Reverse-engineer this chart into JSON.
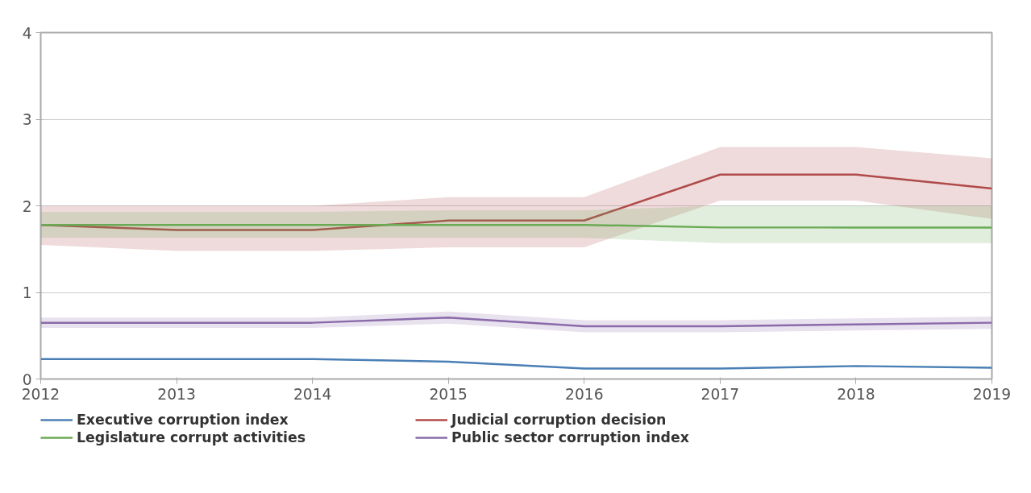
{
  "chart_data": {
    "type": "line",
    "x": [
      2012,
      2013,
      2014,
      2015,
      2016,
      2017,
      2018,
      2019
    ],
    "xlim": [
      2012,
      2019
    ],
    "xticks": [
      2012,
      2013,
      2014,
      2015,
      2016,
      2017,
      2018,
      2019
    ],
    "ylim": [
      0,
      4
    ],
    "yticks": [
      0,
      1,
      2,
      3,
      4
    ],
    "grid": "y",
    "legend": "bottom",
    "line_style": "solid",
    "marker": "none",
    "series": [
      {
        "name": "Executive corruption index",
        "color": "#4a7fb5",
        "values": [
          0.23,
          0.23,
          0.23,
          0.2,
          0.12,
          0.12,
          0.15,
          0.13
        ]
      },
      {
        "name": "Judicial corruption decision",
        "color": "#b04a4a",
        "values": [
          1.78,
          1.72,
          1.72,
          1.83,
          1.83,
          2.36,
          2.36,
          2.2
        ],
        "lower": [
          1.55,
          1.48,
          1.48,
          1.52,
          1.52,
          2.06,
          2.06,
          1.85
        ],
        "upper": [
          2.0,
          2.0,
          2.0,
          2.1,
          2.1,
          2.68,
          2.68,
          2.55
        ]
      },
      {
        "name": "Legislature corrupt activities",
        "color": "#6aaa55",
        "values": [
          1.78,
          1.78,
          1.78,
          1.78,
          1.78,
          1.75,
          1.75,
          1.75
        ],
        "lower": [
          1.63,
          1.63,
          1.63,
          1.63,
          1.63,
          1.57,
          1.57,
          1.57
        ],
        "upper": [
          1.93,
          1.93,
          1.93,
          1.95,
          1.95,
          2.0,
          2.0,
          2.0
        ]
      },
      {
        "name": "Public sector corruption index",
        "color": "#8a6aaa",
        "values": [
          0.65,
          0.65,
          0.65,
          0.71,
          0.61,
          0.61,
          0.63,
          0.65
        ],
        "lower": [
          0.59,
          0.59,
          0.59,
          0.64,
          0.54,
          0.54,
          0.56,
          0.58
        ],
        "upper": [
          0.71,
          0.71,
          0.71,
          0.78,
          0.68,
          0.68,
          0.7,
          0.72
        ]
      }
    ]
  }
}
